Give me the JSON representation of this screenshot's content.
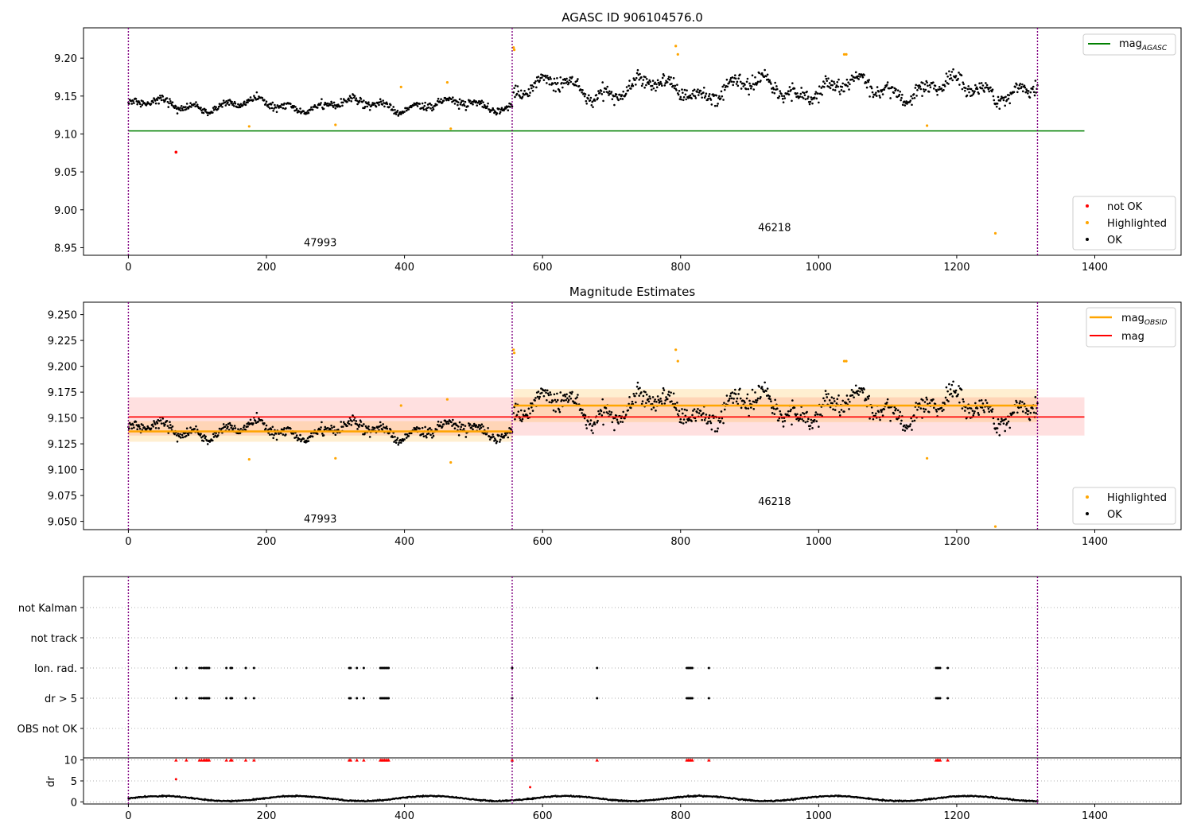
{
  "chart_data": [
    {
      "type": "scatter",
      "title": "AGASC ID 906104576.0",
      "xlim": [
        -65,
        1525
      ],
      "ylim": [
        8.94,
        9.24
      ],
      "xticks": [
        0,
        200,
        400,
        600,
        800,
        1000,
        1200,
        1400
      ],
      "yticks": [
        8.95,
        9.0,
        9.05,
        9.1,
        9.15,
        9.2
      ],
      "ytick_labels": [
        "8.95",
        "9.00",
        "9.05",
        "9.10",
        "9.15",
        "9.20"
      ],
      "obsid_boundaries": [
        0,
        556,
        1317
      ],
      "obsid_labels": [
        {
          "text": "47993",
          "x": 278,
          "y": 8.952
        },
        {
          "text": "46218",
          "x": 936,
          "y": 8.972
        }
      ],
      "ref_line": {
        "label": "mag$_{AGASC}$",
        "label_base": "mag",
        "label_sub": "AGASC",
        "value": 9.104,
        "x_range": [
          0,
          1385
        ],
        "color": "#008000"
      },
      "segments": [
        {
          "x_range": [
            0,
            556
          ],
          "mean": 9.138,
          "spread": 0.01
        },
        {
          "x_range": [
            558,
            1317
          ],
          "mean": 9.16,
          "spread": 0.018
        }
      ],
      "not_ok_points": [
        [
          69,
          9.076
        ]
      ],
      "highlighted_points": [
        [
          175,
          9.11
        ],
        [
          300,
          9.112
        ],
        [
          395,
          9.162
        ],
        [
          462,
          9.168
        ],
        [
          467,
          9.107
        ],
        [
          558,
          9.214
        ],
        [
          559,
          9.211
        ],
        [
          793,
          9.216
        ],
        [
          796,
          9.205
        ],
        [
          1037,
          9.205
        ],
        [
          1040,
          9.205
        ],
        [
          1157,
          9.111
        ],
        [
          1256,
          8.969
        ]
      ],
      "legend_top": [
        {
          "label": "mag$_{AGASC}$",
          "color": "#008000",
          "marker": "line"
        }
      ],
      "legend_bottom": [
        {
          "label": "not OK",
          "color": "#ff0000",
          "marker": "dot"
        },
        {
          "label": "Highlighted",
          "color": "#ffa500",
          "marker": "dot"
        },
        {
          "label": "OK",
          "color": "#000000",
          "marker": "dot"
        }
      ]
    },
    {
      "type": "scatter",
      "title": "Magnitude Estimates",
      "xlim": [
        -65,
        1525
      ],
      "ylim": [
        9.042,
        9.262
      ],
      "xticks": [
        0,
        200,
        400,
        600,
        800,
        1000,
        1200,
        1400
      ],
      "yticks": [
        9.05,
        9.075,
        9.1,
        9.125,
        9.15,
        9.175,
        9.2,
        9.225,
        9.25
      ],
      "ytick_labels": [
        "9.050",
        "9.075",
        "9.100",
        "9.125",
        "9.150",
        "9.175",
        "9.200",
        "9.225",
        "9.250"
      ],
      "obsid_boundaries": [
        0,
        556,
        1317
      ],
      "obsid_labels": [
        {
          "text": "47993",
          "x": 278,
          "y": 9.049
        },
        {
          "text": "46218",
          "x": 936,
          "y": 9.066
        }
      ],
      "mag": {
        "value": 9.151,
        "band": [
          9.133,
          9.17
        ],
        "x_range": [
          0,
          1385
        ],
        "color": "#ff0000"
      },
      "mag_obsid": [
        {
          "x_range": [
            0,
            556
          ],
          "value": 9.137,
          "band": [
            9.127,
            9.147
          ]
        },
        {
          "x_range": [
            558,
            1317
          ],
          "value": 9.162,
          "band": [
            9.146,
            9.178
          ]
        }
      ],
      "highlighted_points": [
        [
          175,
          9.11
        ],
        [
          300,
          9.111
        ],
        [
          395,
          9.162
        ],
        [
          462,
          9.168
        ],
        [
          467,
          9.107
        ],
        [
          558,
          9.216
        ],
        [
          559,
          9.213
        ],
        [
          793,
          9.216
        ],
        [
          796,
          9.205
        ],
        [
          1037,
          9.205
        ],
        [
          1040,
          9.205
        ],
        [
          1157,
          9.111
        ],
        [
          1256,
          9.045
        ]
      ],
      "legend_top": [
        {
          "label": "mag$_{OBSID}$",
          "label_base": "mag",
          "label_sub": "OBSID",
          "color": "#ffa500",
          "marker": "line"
        },
        {
          "label": "mag",
          "color": "#ff0000",
          "marker": "line"
        }
      ],
      "legend_bottom": [
        {
          "label": "Highlighted",
          "color": "#ffa500",
          "marker": "dot"
        },
        {
          "label": "OK",
          "color": "#000000",
          "marker": "dot"
        }
      ]
    },
    {
      "type": "scatter",
      "title": "",
      "xlim": [
        -65,
        1525
      ],
      "categories": [
        "OBS not OK",
        "dr > 5",
        "Ion. rad.",
        "not Kalman",
        "not track"
      ],
      "category_order_top_to_bottom": [
        "not Kalman",
        "not track",
        "Ion. rad.",
        "dr > 5",
        "OBS not OK"
      ],
      "obsid_boundaries": [
        0,
        556,
        1317
      ],
      "flag_points": {
        "dr > 5": [
          69,
          84,
          103,
          106,
          109,
          111,
          113,
          115,
          117,
          142,
          148,
          150,
          170,
          182,
          320,
          322,
          331,
          341,
          365,
          367,
          369,
          371,
          373,
          375,
          377,
          556,
          679,
          809,
          811,
          813,
          815,
          817,
          841,
          1170,
          1172,
          1174,
          1176,
          1187
        ],
        "Ion. rad.": [
          69,
          84,
          103,
          106,
          109,
          111,
          113,
          115,
          117,
          142,
          148,
          150,
          170,
          182,
          320,
          322,
          331,
          341,
          365,
          367,
          369,
          371,
          373,
          375,
          377,
          556,
          679,
          809,
          811,
          813,
          815,
          817,
          841,
          1170,
          1172,
          1174,
          1176,
          1187
        ]
      }
    },
    {
      "type": "scatter",
      "title": "",
      "ylabel": "dr",
      "xlim": [
        -65,
        1525
      ],
      "ylim": [
        -0.5,
        10.5
      ],
      "xticks": [
        0,
        200,
        400,
        600,
        800,
        1000,
        1200,
        1400
      ],
      "yticks": [
        0,
        5,
        10
      ],
      "ytick_labels": [
        "0",
        "5",
        "10"
      ],
      "obsid_boundaries": [
        0,
        556,
        1317
      ],
      "clipped_points": [
        69,
        84,
        103,
        106,
        109,
        111,
        113,
        115,
        117,
        142,
        148,
        150,
        170,
        182,
        320,
        322,
        331,
        341,
        365,
        367,
        369,
        371,
        373,
        375,
        377,
        556,
        679,
        809,
        811,
        813,
        815,
        817,
        841,
        1170,
        1172,
        1174,
        1176,
        1187
      ],
      "red_points": [
        [
          69,
          5.4
        ],
        [
          582,
          3.5
        ]
      ]
    }
  ]
}
